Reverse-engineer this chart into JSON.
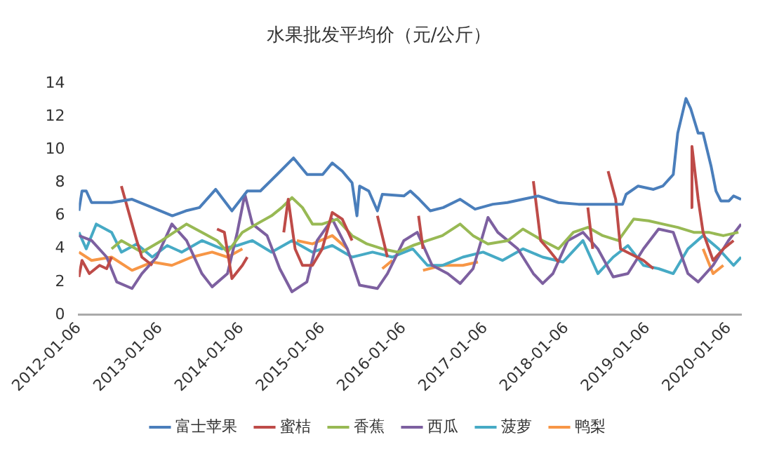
{
  "chart_data": {
    "type": "line",
    "title": "水果批发平均价（元/公斤）",
    "xlim": [
      "2012-01-06",
      "2020-03-01"
    ],
    "xticks": [
      "2012-01-06",
      "2013-01-06",
      "2014-01-06",
      "2015-01-06",
      "2016-01-06",
      "2017-01-06",
      "2018-01-06",
      "2019-01-06",
      "2020-01-06"
    ],
    "ylim": [
      0,
      14
    ],
    "yticks": [
      0,
      2,
      4,
      6,
      8,
      10,
      12,
      14
    ],
    "grid": false,
    "legend": "bottom",
    "series": [
      {
        "name": "富士苹果",
        "color": "#4a7ebb",
        "x": [
          "2012-01-06",
          "2012-01-20",
          "2012-02-08",
          "2012-03-03",
          "2012-06-01",
          "2012-09-01",
          "2012-12-01",
          "2013-03-01",
          "2013-05-01",
          "2013-07-01",
          "2013-09-12",
          "2013-11-24",
          "2014-02-01",
          "2014-04-01",
          "2014-06-15",
          "2014-08-28",
          "2014-10-28",
          "2015-01-06",
          "2015-02-18",
          "2015-04-04",
          "2015-05-18",
          "2015-06-09",
          "2015-06-21",
          "2015-08-01",
          "2015-09-09",
          "2015-10-01",
          "2016-01-06",
          "2016-02-04",
          "2016-03-15",
          "2016-05-04",
          "2016-07-01",
          "2016-09-15",
          "2016-11-21",
          "2017-02-09",
          "2017-04-15",
          "2017-06-24",
          "2017-09-01",
          "2017-12-01",
          "2018-03-01",
          "2018-07-01",
          "2018-09-15",
          "2018-10-01",
          "2018-11-24",
          "2019-02-01",
          "2019-03-15",
          "2019-05-01",
          "2019-05-21",
          "2019-06-27",
          "2019-07-18",
          "2019-08-21",
          "2019-09-12",
          "2019-10-18",
          "2019-11-09",
          "2019-12-01",
          "2020-01-06",
          "2020-01-27",
          "2020-03-01"
        ],
        "values": [
          6.3,
          7.5,
          7.5,
          6.8,
          6.8,
          7.0,
          6.5,
          6.0,
          6.3,
          6.5,
          7.6,
          6.3,
          7.5,
          7.5,
          8.5,
          9.5,
          8.5,
          8.5,
          9.2,
          8.7,
          8.0,
          6.0,
          7.8,
          7.5,
          6.3,
          7.3,
          7.2,
          7.5,
          7.0,
          6.3,
          6.5,
          7.0,
          6.4,
          6.7,
          6.8,
          7.0,
          7.2,
          6.8,
          6.7,
          6.7,
          6.7,
          7.3,
          7.8,
          7.6,
          7.8,
          8.5,
          11,
          13.1,
          12.5,
          11,
          11,
          9,
          7.5,
          6.9,
          6.9,
          7.2,
          7.0
        ]
      },
      {
        "name": "蜜桔",
        "color": "#be4b48",
        "x": [
          "2012-01-06",
          "2012-01-20",
          "2012-02-22",
          "2012-04-08",
          "2012-05-10",
          "2012-06-01",
          "2012-06-20",
          "2012-07-15",
          "2012-09-01",
          "2012-09-22",
          "2012-10-15",
          "2012-12-01",
          "2013-05-01",
          "2013-09-18",
          "2013-10-21",
          "2013-11-24",
          "2014-01-10",
          "2014-02-01",
          "2014-04-01",
          "2014-07-15",
          "2014-08-04",
          "2014-09-04",
          "2014-10-07",
          "2014-11-21",
          "2015-01-04",
          "2015-02-18",
          "2015-04-04",
          "2015-05-18",
          "2015-07-01",
          "2015-09-09",
          "2015-10-24",
          "2016-01-01",
          "2016-03-12",
          "2016-04-01",
          "2016-10-01",
          "2017-08-10",
          "2017-09-12",
          "2017-10-15",
          "2017-12-01",
          "2018-03-01",
          "2018-04-12",
          "2018-05-04",
          "2018-06-01",
          "2018-07-12",
          "2018-08-15",
          "2018-09-06",
          "2018-12-18",
          "2019-02-01",
          "2019-05-01",
          "2019-07-18",
          "2019-07-24",
          "2019-08-21",
          "2019-09-12",
          "2019-10-27",
          "2019-12-12",
          "2020-01-27"
        ],
        "values": [
          2.3,
          3.3,
          2.5,
          3.0,
          2.8,
          3.5,
          null,
          7.8,
          5.5,
          4.5,
          3.5,
          3.0,
          null,
          5.2,
          5.0,
          2.2,
          3.0,
          3.5,
          null,
          5.0,
          7.0,
          4.0,
          3.0,
          3.0,
          4.0,
          6.2,
          5.8,
          4.5,
          null,
          6.0,
          3.5,
          null,
          6.0,
          4.0,
          null,
          8.1,
          4.5,
          4.0,
          3.2,
          null,
          6.5,
          4.0,
          null,
          8.7,
          7.0,
          4.0,
          3.3,
          2.8,
          null,
          6.5,
          10.2,
          7.0,
          5.0,
          3.3,
          4.0,
          4.5
        ]
      },
      {
        "name": "香蕉",
        "color": "#98b954",
        "x": [
          "2012-06-01",
          "2012-07-15",
          "2012-10-15",
          "2013-01-12",
          "2013-05-04",
          "2013-07-12",
          "2013-09-18",
          "2013-11-04",
          "2014-01-10",
          "2014-03-15",
          "2014-05-21",
          "2014-07-06",
          "2014-08-21",
          "2014-10-07",
          "2014-11-21",
          "2015-01-04",
          "2015-03-12",
          "2015-05-18",
          "2015-07-24",
          "2015-10-01",
          "2015-12-10",
          "2016-02-15",
          "2016-04-21",
          "2016-06-27",
          "2016-09-15",
          "2016-11-12",
          "2017-01-18",
          "2017-04-18",
          "2017-06-24",
          "2017-09-21",
          "2017-12-01",
          "2018-02-06",
          "2018-04-12",
          "2018-06-18",
          "2018-08-27",
          "2018-11-04",
          "2019-01-10",
          "2019-03-15",
          "2019-05-21",
          "2019-08-01",
          "2019-10-07",
          "2019-12-12",
          "2020-02-18"
        ],
        "values": [
          4.0,
          4.5,
          3.8,
          4.5,
          5.5,
          5.0,
          4.5,
          3.8,
          5.0,
          5.5,
          6.0,
          6.5,
          7.1,
          6.5,
          5.5,
          5.5,
          5.8,
          4.8,
          4.3,
          4.0,
          3.8,
          4.2,
          4.5,
          4.8,
          5.5,
          4.8,
          4.3,
          4.5,
          5.2,
          4.5,
          4.0,
          5.0,
          5.3,
          4.8,
          4.5,
          5.8,
          5.7,
          5.5,
          5.3,
          5.0,
          5.0,
          4.8,
          5.0
        ]
      },
      {
        "name": "西瓜",
        "color": "#7d60a0",
        "x": [
          "2012-01-06",
          "2012-03-03",
          "2012-05-10",
          "2012-06-24",
          "2012-09-01",
          "2012-10-15",
          "2012-12-21",
          "2013-02-27",
          "2013-05-04",
          "2013-07-12",
          "2013-08-27",
          "2013-11-04",
          "2013-12-18",
          "2014-01-21",
          "2014-02-24",
          "2014-05-01",
          "2014-06-27",
          "2014-08-21",
          "2014-10-27",
          "2014-12-12",
          "2015-02-18",
          "2015-04-27",
          "2015-06-21",
          "2015-09-09",
          "2015-10-24",
          "2016-01-06",
          "2016-03-06",
          "2016-05-12",
          "2016-07-21",
          "2016-09-15",
          "2016-11-12",
          "2017-01-18",
          "2017-03-03",
          "2017-06-01",
          "2017-08-10",
          "2017-09-21",
          "2017-11-06",
          "2018-01-12",
          "2018-03-21",
          "2018-05-27",
          "2018-08-04",
          "2018-10-09",
          "2018-12-18",
          "2019-02-24",
          "2019-05-01",
          "2019-07-06",
          "2019-08-21",
          "2019-10-27",
          "2020-01-04",
          "2020-03-01"
        ],
        "values": [
          4.8,
          4.5,
          3.5,
          2.0,
          1.6,
          2.5,
          3.5,
          5.5,
          4.5,
          2.5,
          1.7,
          2.5,
          5.0,
          7.3,
          5.5,
          4.8,
          2.8,
          1.4,
          2.0,
          4.5,
          5.8,
          4.0,
          1.8,
          1.6,
          2.5,
          4.5,
          5.0,
          3.0,
          2.5,
          1.9,
          2.8,
          5.9,
          5.0,
          4.0,
          2.5,
          1.9,
          2.5,
          4.5,
          5.0,
          4.0,
          2.3,
          2.5,
          4.0,
          5.2,
          5.0,
          2.5,
          2.0,
          3.0,
          4.5,
          5.5
        ]
      },
      {
        "name": "菠萝",
        "color": "#46aac5",
        "x": [
          "2012-01-06",
          "2012-02-08",
          "2012-03-24",
          "2012-06-01",
          "2012-07-15",
          "2012-09-22",
          "2012-12-01",
          "2013-02-06",
          "2013-04-12",
          "2013-07-12",
          "2013-10-09",
          "2013-12-18",
          "2014-02-24",
          "2014-05-21",
          "2014-08-21",
          "2014-11-21",
          "2015-02-18",
          "2015-05-18",
          "2015-08-18",
          "2015-11-15",
          "2016-02-15",
          "2016-04-21",
          "2016-06-27",
          "2016-09-27",
          "2016-12-27",
          "2017-03-24",
          "2017-06-24",
          "2017-09-21",
          "2017-12-21",
          "2018-03-21",
          "2018-05-27",
          "2018-08-04",
          "2018-10-09",
          "2018-12-18",
          "2019-02-24",
          "2019-05-01",
          "2019-07-06",
          "2019-09-12",
          "2019-11-21",
          "2020-01-27",
          "2020-03-01"
        ],
        "values": [
          5.0,
          4.0,
          5.5,
          5.0,
          3.8,
          4.3,
          3.5,
          4.2,
          3.8,
          4.5,
          4.0,
          4.2,
          4.5,
          3.8,
          4.5,
          3.8,
          4.2,
          3.5,
          3.8,
          3.5,
          4.0,
          3.0,
          3.0,
          3.5,
          3.8,
          3.3,
          4.0,
          3.5,
          3.2,
          4.5,
          2.5,
          3.5,
          4.2,
          3.0,
          2.8,
          2.5,
          4.0,
          4.8,
          4.0,
          3.0,
          3.5
        ]
      },
      {
        "name": "鸭梨",
        "color": "#f79646",
        "x": [
          "2012-01-06",
          "2012-03-03",
          "2012-06-01",
          "2012-09-01",
          "2012-12-01",
          "2013-02-27",
          "2013-05-27",
          "2013-08-27",
          "2013-11-04",
          "2014-01-10",
          "2014-05-01",
          "2014-09-12",
          "2014-11-21",
          "2015-02-18",
          "2015-04-27",
          "2015-07-01",
          "2015-10-01",
          "2015-11-15",
          "2016-02-01",
          "2016-04-01",
          "2016-06-27",
          "2016-09-27",
          "2016-12-04",
          "2017-06-01",
          "2019-09-12",
          "2019-10-27",
          "2019-12-12"
        ],
        "values": [
          3.8,
          3.3,
          3.5,
          2.7,
          3.2,
          3.0,
          3.5,
          3.8,
          3.5,
          4.0,
          null,
          4.5,
          4.3,
          4.8,
          4.0,
          null,
          2.8,
          3.3,
          null,
          2.7,
          3.0,
          3.0,
          3.2,
          null,
          4.0,
          2.5,
          3.0
        ]
      }
    ]
  }
}
